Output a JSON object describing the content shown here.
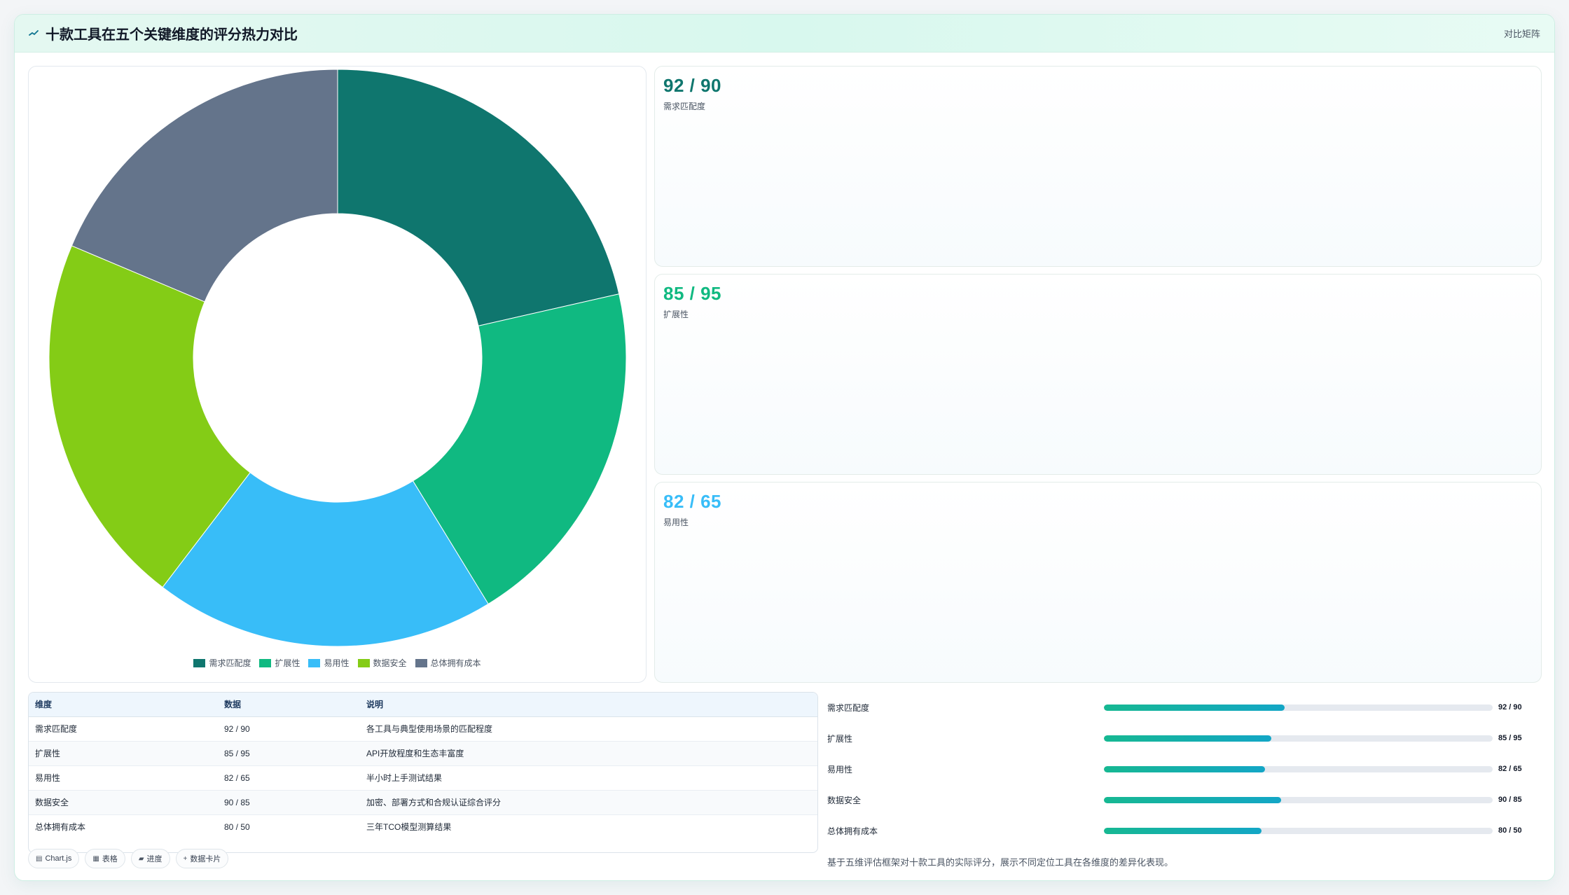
{
  "header": {
    "title": "十款工具在五个关键维度的评分热力对比",
    "tag": "对比矩阵"
  },
  "colors": {
    "accent": "#0f766e",
    "dim1": "#0f766e",
    "dim2": "#10b981",
    "dim3": "#38bdf8",
    "dim4": "#84cc16",
    "dim5": "#64748b"
  },
  "chart_data": {
    "type": "pie",
    "variant": "doughnut",
    "categories": [
      "需求匹配度",
      "扩展性",
      "易用性",
      "数据安全",
      "总体拥有成本"
    ],
    "values": [
      92,
      85,
      82,
      90,
      80
    ],
    "colors": [
      "#0f766e",
      "#10b981",
      "#38bdf8",
      "#84cc16",
      "#64748b"
    ],
    "legend_position": "bottom"
  },
  "stats": [
    {
      "value": "92 / 90",
      "label": "需求匹配度",
      "color": "#0f766e"
    },
    {
      "value": "85 / 95",
      "label": "扩展性",
      "color": "#10b981"
    },
    {
      "value": "82 / 65",
      "label": "易用性",
      "color": "#38bdf8"
    }
  ],
  "table": {
    "headers": [
      "维度",
      "数据",
      "说明"
    ],
    "rows": [
      [
        "需求匹配度",
        "92 / 90",
        "各工具与典型使用场景的匹配程度"
      ],
      [
        "扩展性",
        "85 / 95",
        "API开放程度和生态丰富度"
      ],
      [
        "易用性",
        "82 / 65",
        "半小时上手测试结果"
      ],
      [
        "数据安全",
        "90 / 85",
        "加密、部署方式和合规认证综合评分"
      ],
      [
        "总体拥有成本",
        "80 / 50",
        "三年TCO模型测算结果"
      ]
    ]
  },
  "chips": [
    {
      "icon": "▤",
      "label": "Chart.js"
    },
    {
      "icon": "▦",
      "label": "表格"
    },
    {
      "icon": "▰",
      "label": "进度"
    },
    {
      "icon": "+",
      "label": "数据卡片"
    }
  ],
  "bars": [
    {
      "label": "需求匹配度",
      "value": "92 / 90",
      "progress": 0.465
    },
    {
      "label": "扩展性",
      "value": "85 / 95",
      "progress": 0.43
    },
    {
      "label": "易用性",
      "value": "82 / 65",
      "progress": 0.415
    },
    {
      "label": "数据安全",
      "value": "90 / 85",
      "progress": 0.455
    },
    {
      "label": "总体拥有成本",
      "value": "80 / 50",
      "progress": 0.405
    }
  ],
  "caption": "基于五维评估框架对十款工具的实际评分，展示不同定位工具在各维度的差异化表现。"
}
